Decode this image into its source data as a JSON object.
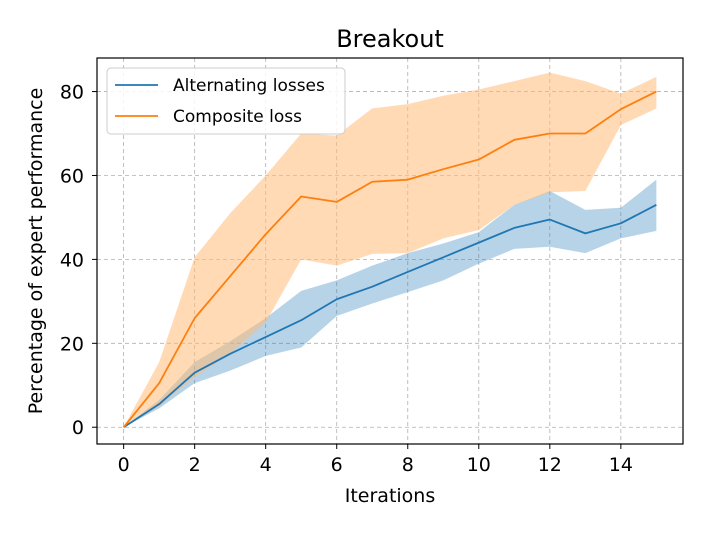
{
  "chart_data": {
    "type": "line",
    "title": "Breakout",
    "xlabel": "Iterations",
    "ylabel": "Percentage of expert performance",
    "xlim": [
      -0.75,
      15.75
    ],
    "ylim": [
      -4,
      88
    ],
    "xticks": [
      0,
      2,
      4,
      6,
      8,
      10,
      12,
      14
    ],
    "yticks": [
      0,
      20,
      40,
      60,
      80
    ],
    "grid": true,
    "legend_position": "top-left",
    "x": [
      0,
      1,
      2,
      3,
      4,
      5,
      6,
      7,
      8,
      9,
      10,
      11,
      12,
      13,
      14,
      15
    ],
    "series": [
      {
        "name": "Alternating losses",
        "color": "#1f77b4",
        "band_color": "#1f77b4",
        "values": [
          0,
          5.5,
          13,
          17.5,
          21.5,
          25.5,
          30.5,
          33.5,
          37,
          40.5,
          44,
          47.5,
          49.5,
          46.2,
          48.6,
          53
        ],
        "lower": [
          0,
          4.5,
          10.5,
          13.5,
          17,
          19,
          26.5,
          29.5,
          32.2,
          35,
          39,
          42.5,
          43,
          41.5,
          45,
          46.8
        ],
        "upper": [
          0,
          6.5,
          15.5,
          20.5,
          26,
          32.5,
          35,
          38.5,
          41.5,
          43.8,
          46.5,
          53,
          56.3,
          51.8,
          52.3,
          59
        ]
      },
      {
        "name": "Composite loss",
        "color": "#ff7f0e",
        "band_color": "#ffbb78",
        "values": [
          0,
          10.5,
          26,
          36,
          46,
          55,
          53.7,
          58.5,
          59,
          61.5,
          63.8,
          68.5,
          70,
          70,
          75.8,
          80
        ],
        "lower": [
          0,
          5,
          12,
          17.5,
          25,
          40,
          38.5,
          41.3,
          41.5,
          45,
          47,
          53,
          56,
          56.3,
          72,
          76
        ],
        "upper": [
          0,
          15.5,
          40.5,
          51,
          60,
          70,
          69.5,
          76,
          77,
          79,
          80.5,
          82.5,
          84.5,
          82.5,
          79.5,
          83.5
        ]
      }
    ]
  }
}
